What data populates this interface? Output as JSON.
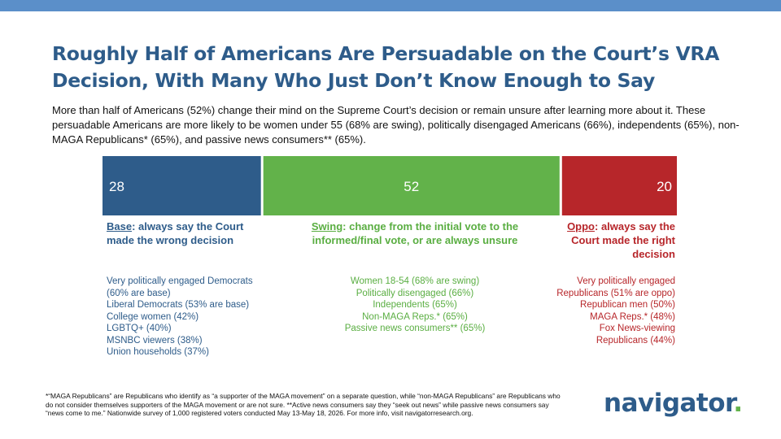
{
  "colors": {
    "top_bar": "#5b8fc9",
    "title": "#2e5c8a",
    "base": "#2e5c8a",
    "swing": "#62b24a",
    "oppo": "#b7262a",
    "base_text": "#2e5c8a",
    "swing_text": "#5aae42",
    "oppo_text": "#b7262a",
    "logo": "#2e5c8a",
    "logo_dot": "#62b24a"
  },
  "title": "Roughly Half of Americans Are Persuadable on the Court’s VRA Decision, With Many Who Just Don’t Know Enough to Say",
  "subtitle": "More than half of Americans (52%) change their mind on the Supreme Court’s decision or remain unsure after learning more about it. These persuadable Americans are more likely to be women under 55 (68% are swing), politically disengaged Americans (66%), independents (65%), non-MAGA Republicans* (65%), and passive news consumers** (65%).",
  "chart_data": {
    "type": "bar",
    "stacked": true,
    "orientation": "horizontal",
    "categories": [
      "Base",
      "Swing",
      "Oppo"
    ],
    "values": [
      28,
      52,
      20
    ],
    "series": [
      {
        "name": "Base",
        "value": 28
      },
      {
        "name": "Swing",
        "value": 52
      },
      {
        "name": "Oppo",
        "value": 20
      }
    ],
    "total": 100,
    "legend": "none",
    "grid": false
  },
  "segments": {
    "base": {
      "name": "Base",
      "desc": ": always say the Court made the wrong decision",
      "items": [
        "Very politically engaged Democrats\n(60% are base)",
        "Liberal Democrats (53% are base)",
        "College women (42%)",
        "LGBTQ+ (40%)",
        "MSNBC viewers (38%)",
        "Union households (37%)"
      ]
    },
    "swing": {
      "name": "Swing",
      "desc": ": change from the initial vote to the informed/final vote, or are always unsure",
      "items": [
        "Women 18-54 (68% are swing)",
        "Politically disengaged (66%)",
        "Independents (65%)",
        "Non-MAGA Reps.* (65%)",
        "Passive news consumers** (65%)"
      ]
    },
    "oppo": {
      "name": "Oppo",
      "desc": ": always say the Court made the right decision",
      "items": [
        "Very politically engaged\nRepublicans (51% are oppo)",
        "Republican men (50%)",
        "MAGA Reps.* (48%)",
        "Fox News-viewing\nRepublicans (44%)"
      ]
    }
  },
  "footnote": "*“MAGA Republicans” are Republicans who identify as “a supporter of the MAGA movement” on a separate question, while “non-MAGA Republicans” are Republicans who do not consider themselves supporters of the MAGA movement or are not sure. **Active news consumers say they “seek out news” while passive news consumers say “news come to me.” Nationwide survey of 1,000 registered voters conducted May 13-May 18, 2026. For more info, visit navigatorresearch.org.",
  "logo": {
    "text": "navigator",
    "dot": "."
  }
}
